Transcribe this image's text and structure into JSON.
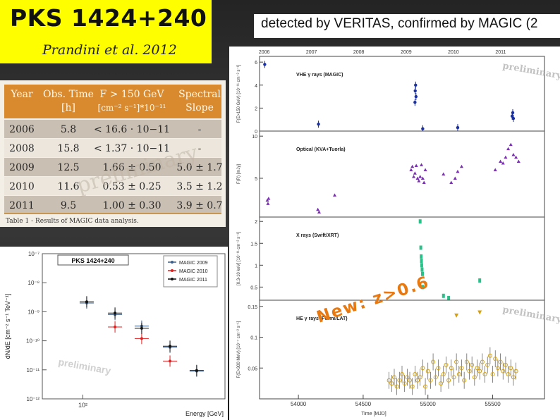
{
  "slide": {
    "title": "PKS 1424+240",
    "subtitle": "Prandini et al. 2012",
    "banner": "detected by VERITAS, confirmed by MAGIC (2",
    "colors": {
      "title_bg": "#fefe00",
      "table_header_bg": "#d98a2e",
      "table_row_dark": "#c9bfb2",
      "table_row_light": "#ece6dc"
    }
  },
  "table": {
    "headers": [
      [
        "Year",
        ""
      ],
      [
        "Obs. Time",
        "[h]"
      ],
      [
        "F > 150 GeV",
        "[cm⁻² s⁻¹]*10⁻¹¹"
      ],
      [
        "Spectral",
        "Slope"
      ]
    ],
    "rows": [
      [
        "2006",
        "5.8",
        "< 16.6 · 10−11",
        "-"
      ],
      [
        "2008",
        "15.8",
        "< 1.37 · 10−11",
        "-"
      ],
      [
        "2009",
        "12.5",
        "1.66 ± 0.50",
        "5.0 ± 1.7"
      ],
      [
        "2010",
        "11.6",
        "0.53 ± 0.25",
        "3.5 ± 1.2"
      ],
      [
        "2011",
        "9.5",
        "1.00 ± 0.30",
        "3.9 ± 0.7"
      ]
    ],
    "caption": "Table 1 - Results of MAGIC data analysis.",
    "watermark": "preliminary"
  },
  "annotation": "New: z>0.6",
  "chart_data": [
    {
      "type": "scatter",
      "title": "PKS 1424+240",
      "xlabel": "Energy [GeV]",
      "ylabel": "dN/dE [cm⁻² s⁻¹ TeV⁻¹]",
      "xscale": "log",
      "yscale": "log",
      "xlim": [
        60,
        600
      ],
      "ylim": [
        1e-12,
        1e-07
      ],
      "x_tick_labels": [
        "10²"
      ],
      "y_tick_labels": [
        "10⁻⁷",
        "10⁻⁸",
        "10⁻⁹",
        "10⁻¹⁰",
        "10⁻¹¹",
        "10⁻¹²"
      ],
      "legend_position": "top-right",
      "watermark": "preliminary",
      "series": [
        {
          "name": "MAGIC 2009",
          "color": "#3a5f8a",
          "points": [
            [
              105,
              2e-09
            ],
            [
              150,
              8e-10
            ],
            [
              210,
              3.2e-10
            ],
            [
              300,
              6e-11
            ],
            [
              420,
              9e-12
            ]
          ]
        },
        {
          "name": "MAGIC 2010",
          "color": "#e02020",
          "points": [
            [
              150,
              3e-10
            ],
            [
              210,
              1.2e-10
            ],
            [
              300,
              2e-11
            ]
          ]
        },
        {
          "name": "MAGIC 2011",
          "color": "#111111",
          "points": [
            [
              105,
              2.2e-09
            ],
            [
              150,
              9e-10
            ],
            [
              210,
              2.7e-10
            ],
            [
              300,
              6.5e-11
            ],
            [
              420,
              9.5e-12
            ]
          ]
        }
      ]
    },
    {
      "type": "scatter",
      "title": "",
      "x_top_labels": [
        "2006",
        "2007",
        "2008",
        "2009",
        "2010",
        "2011"
      ],
      "x_top_values": [
        53736,
        54101,
        54466,
        54832,
        55197,
        55562
      ],
      "xlabel": "Time [MJD]",
      "xlim": [
        53700,
        55900
      ],
      "x_tick_labels": [
        "54000",
        "54500",
        "55000",
        "55500"
      ],
      "x_tick_values": [
        54000,
        54500,
        55000,
        55500
      ],
      "watermark": "preliminary",
      "panels": [
        {
          "label": "VHE γ rays (MAGIC)",
          "ylabel": "F(E>150 GeV) [10⁻¹¹ cm⁻² s⁻¹]",
          "ylim": [
            0,
            6.5
          ],
          "yticks": [
            0,
            2,
            4,
            6
          ],
          "color": "#1a2fa0",
          "points": [
            [
              53740,
              5.8
            ],
            [
              54155,
              0.6
            ],
            [
              54900,
              2.5
            ],
            [
              54902,
              3.5
            ],
            [
              54905,
              4.0
            ],
            [
              54908,
              3.0
            ],
            [
              54960,
              0.2
            ],
            [
              55230,
              0.3
            ],
            [
              55650,
              1.3
            ],
            [
              55655,
              1.6
            ],
            [
              55660,
              1.1
            ]
          ]
        },
        {
          "label": "Optical (KVA+Tuorla)",
          "ylabel": "F(R) [mJy]",
          "ylim": [
            0.4,
            10.6
          ],
          "yticks": [
            10,
            5
          ],
          "color": "#7a30b0",
          "points": [
            [
              53760,
              2.4
            ],
            [
              53765,
              2.0
            ],
            [
              53770,
              2.6
            ],
            [
              54150,
              1.3
            ],
            [
              54160,
              1.0
            ],
            [
              54280,
              3.0
            ],
            [
              54870,
              6.0
            ],
            [
              54880,
              6.4
            ],
            [
              54890,
              5.2
            ],
            [
              54900,
              5.6
            ],
            [
              54910,
              6.5
            ],
            [
              54920,
              5.0
            ],
            [
              54930,
              4.7
            ],
            [
              54940,
              5.2
            ],
            [
              54950,
              6.6
            ],
            [
              54960,
              5.0
            ],
            [
              54970,
              4.5
            ],
            [
              54980,
              6.0
            ],
            [
              55120,
              5.5
            ],
            [
              55180,
              4.5
            ],
            [
              55210,
              5.0
            ],
            [
              55230,
              5.8
            ],
            [
              55260,
              6.4
            ],
            [
              55520,
              6.0
            ],
            [
              55560,
              7.0
            ],
            [
              55580,
              6.8
            ],
            [
              55600,
              7.5
            ],
            [
              55620,
              8.5
            ],
            [
              55640,
              9.0
            ],
            [
              55660,
              7.8
            ],
            [
              55680,
              7.5
            ],
            [
              55700,
              7.0
            ]
          ]
        },
        {
          "label": "X rays (Swift/XRT)",
          "ylabel": "[0.3-10 keV] [10⁻¹¹ cm⁻² s⁻¹]",
          "ylim": [
            0.2,
            2.1
          ],
          "yticks": [
            2,
            1.5,
            1,
            0.5
          ],
          "color": "#2bbf8a",
          "points": [
            [
              54940,
              2.0
            ],
            [
              54945,
              1.4
            ],
            [
              54948,
              1.2
            ],
            [
              54950,
              1.1
            ],
            [
              54952,
              1.0
            ],
            [
              54955,
              0.9
            ],
            [
              54958,
              0.8
            ],
            [
              54960,
              0.5
            ],
            [
              55120,
              0.3
            ],
            [
              55160,
              0.25
            ],
            [
              55400,
              0.65
            ]
          ]
        },
        {
          "label": "HE γ rays (Fermi/LAT)",
          "ylabel": "F(E>300 MeV) [10⁻⁷ cm⁻² s⁻¹]",
          "ylim": [
            0,
            0.16
          ],
          "yticks": [
            0.15,
            0.1,
            0.05
          ],
          "color": "#d4a010",
          "points": [
            [
              54700,
              0.03
            ],
            [
              54720,
              0.025
            ],
            [
              54740,
              0.035
            ],
            [
              54760,
              0.02
            ],
            [
              54780,
              0.03
            ],
            [
              54800,
              0.04
            ],
            [
              54820,
              0.025
            ],
            [
              54840,
              0.035
            ],
            [
              54860,
              0.03
            ],
            [
              54880,
              0.02
            ],
            [
              54900,
              0.04
            ],
            [
              54920,
              0.03
            ],
            [
              54940,
              0.035
            ],
            [
              54960,
              0.05
            ],
            [
              54980,
              0.02
            ],
            [
              55000,
              0.045
            ],
            [
              55020,
              0.03
            ],
            [
              55040,
              0.06
            ],
            [
              55060,
              0.035
            ],
            [
              55080,
              0.05
            ],
            [
              55100,
              0.025
            ],
            [
              55120,
              0.04
            ],
            [
              55140,
              0.055
            ],
            [
              55160,
              0.03
            ],
            [
              55180,
              0.05
            ],
            [
              55200,
              0.035
            ],
            [
              55220,
              0.06
            ],
            [
              55240,
              0.04
            ],
            [
              55260,
              0.05
            ],
            [
              55280,
              0.03
            ],
            [
              55300,
              0.06
            ],
            [
              55320,
              0.045
            ],
            [
              55340,
              0.055
            ],
            [
              55360,
              0.035
            ],
            [
              55380,
              0.05
            ],
            [
              55400,
              0.045
            ],
            [
              55420,
              0.06
            ],
            [
              55440,
              0.04
            ],
            [
              55460,
              0.055
            ],
            [
              55480,
              0.07
            ],
            [
              55500,
              0.04
            ],
            [
              55520,
              0.065
            ],
            [
              55540,
              0.05
            ],
            [
              55560,
              0.06
            ],
            [
              55580,
              0.045
            ],
            [
              55600,
              0.055
            ],
            [
              55620,
              0.04
            ],
            [
              55640,
              0.05
            ],
            [
              55660,
              0.035
            ],
            [
              55680,
              0.045
            ],
            [
              55220,
              0.135
            ],
            [
              55400,
              0.14
            ]
          ]
        }
      ]
    }
  ]
}
